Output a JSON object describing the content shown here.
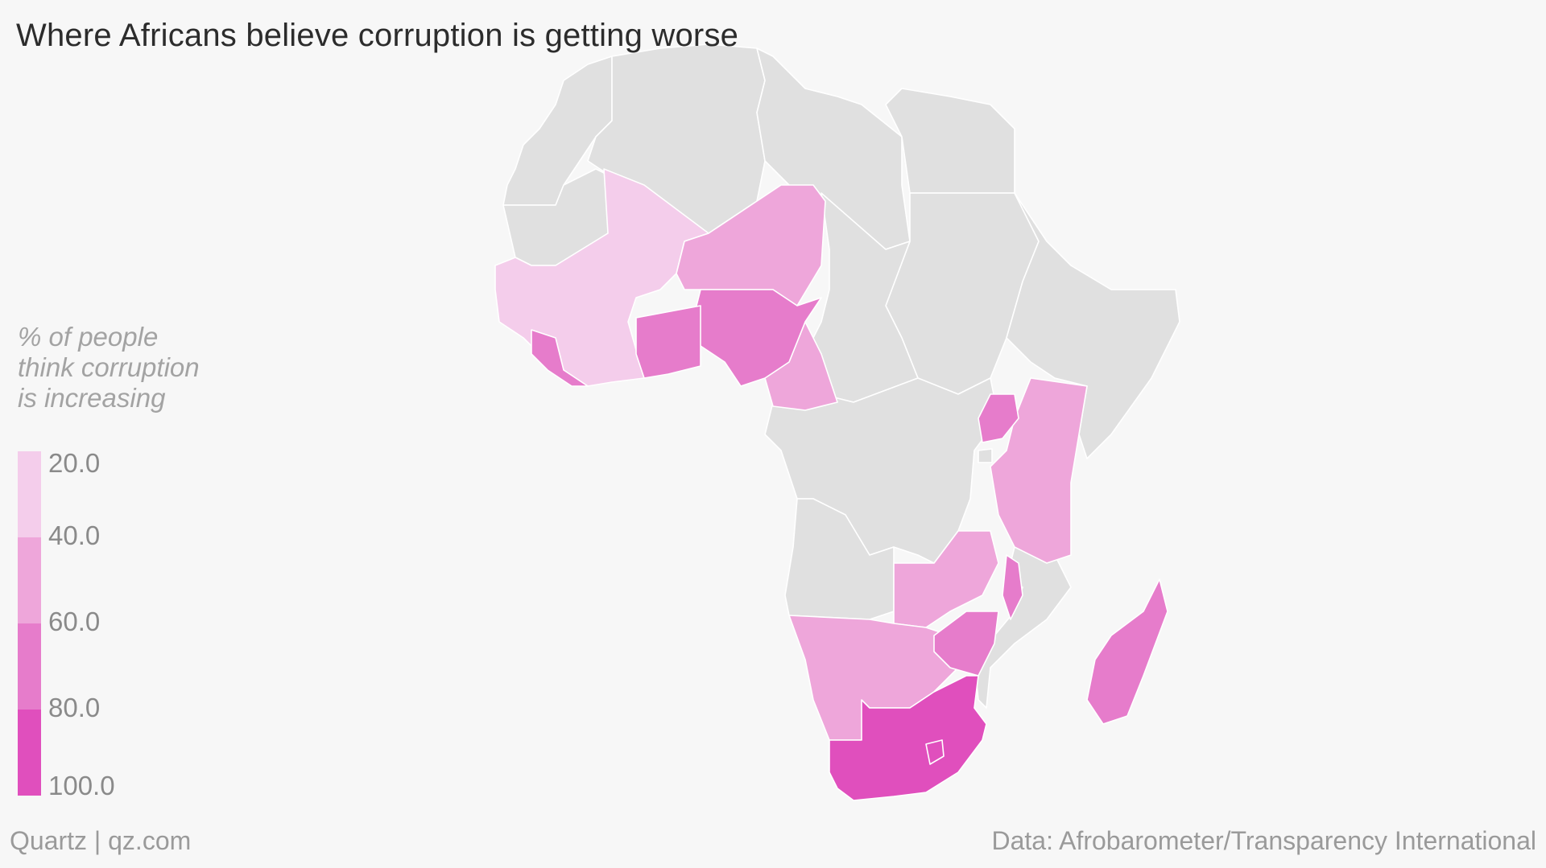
{
  "title": "Where Africans believe corruption is getting worse",
  "legend": {
    "title_lines": [
      "% of people",
      "think corruption",
      "is increasing"
    ],
    "ticks": [
      "20.0",
      "40.0",
      "60.0",
      "80.0",
      "100.0"
    ],
    "colors": [
      "#f4cdeb",
      "#eea6da",
      "#e67ccb",
      "#e04fbd",
      "#e03cba"
    ]
  },
  "colors": {
    "no_data": "#e0e0e0",
    "background": "#f7f7f7",
    "border": "#ffffff"
  },
  "footer": {
    "left": "Quartz | qz.com",
    "right": "Data: Afrobarometer/Transparency International"
  },
  "map_data": {
    "type": "choropleth",
    "region": "Africa",
    "bins": [
      [
        20,
        40
      ],
      [
        40,
        60
      ],
      [
        60,
        80
      ],
      [
        80,
        100
      ]
    ],
    "colored_countries": [
      {
        "country": "Senegal",
        "bin": 0
      },
      {
        "country": "Mali",
        "bin": 0
      },
      {
        "country": "Burkina Faso",
        "bin": 0
      },
      {
        "country": "Guinea",
        "bin": 0
      },
      {
        "country": "Ivory Coast",
        "bin": 0
      },
      {
        "country": "Niger",
        "bin": 1
      },
      {
        "country": "Cameroon",
        "bin": 1
      },
      {
        "country": "Kenya",
        "bin": 1
      },
      {
        "country": "Tanzania",
        "bin": 1
      },
      {
        "country": "Zambia",
        "bin": 1
      },
      {
        "country": "Namibia",
        "bin": 1
      },
      {
        "country": "Botswana",
        "bin": 1
      },
      {
        "country": "Sierra Leone",
        "bin": 2
      },
      {
        "country": "Liberia",
        "bin": 2
      },
      {
        "country": "Ghana",
        "bin": 2
      },
      {
        "country": "Togo",
        "bin": 2
      },
      {
        "country": "Benin",
        "bin": 2
      },
      {
        "country": "Nigeria",
        "bin": 2
      },
      {
        "country": "Uganda",
        "bin": 2
      },
      {
        "country": "Burundi",
        "bin": 2
      },
      {
        "country": "Malawi",
        "bin": 2
      },
      {
        "country": "Zimbabwe",
        "bin": 2
      },
      {
        "country": "Madagascar",
        "bin": 2
      },
      {
        "country": "South Africa",
        "bin": 3
      },
      {
        "country": "Lesotho",
        "bin": 3
      }
    ],
    "grey_countries": [
      "Morocco",
      "Algeria",
      "Tunisia",
      "Libya",
      "Egypt",
      "Western Sahara",
      "Mauritania",
      "Chad",
      "Sudan",
      "South Sudan",
      "Ethiopia",
      "Eritrea",
      "Somalia",
      "Central African Republic",
      "DR Congo",
      "Congo",
      "Gabon",
      "Equatorial Guinea",
      "Angola",
      "Mozambique",
      "Rwanda",
      "Swaziland"
    ]
  }
}
